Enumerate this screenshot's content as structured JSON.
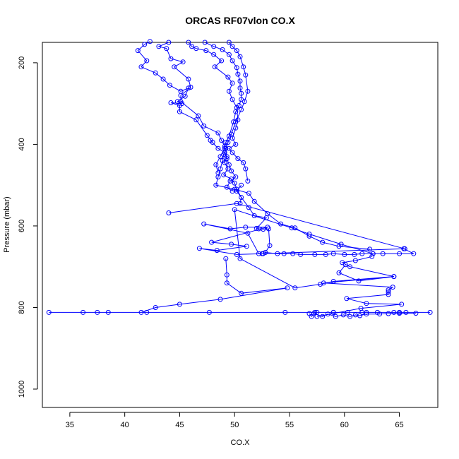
{
  "chart_data": {
    "type": "scatter",
    "title": "ORCAS RF07vlon CO.X",
    "xlabel": "CO.X",
    "ylabel": "Pressure (mbar)",
    "xlim": [
      32.5,
      68.5
    ],
    "ylim": [
      1045,
      150
    ],
    "y_inverted": true,
    "x_ticks": [
      35,
      40,
      45,
      50,
      55,
      60,
      65
    ],
    "y_ticks": [
      200,
      400,
      600,
      800,
      1000
    ],
    "grid": false,
    "legend": "none",
    "color": "#0000ff",
    "marker": "open-circle",
    "series": [
      {
        "points": [
          [
            42.3,
            148
          ],
          [
            41.8,
            155
          ],
          [
            41.2,
            170
          ],
          [
            42.0,
            195
          ],
          [
            41.5,
            210
          ],
          [
            42.8,
            225
          ],
          [
            43.5,
            240
          ],
          [
            44.1,
            255
          ],
          [
            45.1,
            270
          ],
          [
            45.8,
            262
          ],
          [
            45.5,
            282
          ],
          [
            44.8,
            295
          ],
          [
            45.2,
            300
          ],
          [
            44.2,
            298
          ],
          [
            45.0,
            305
          ],
          [
            45.0,
            320
          ],
          [
            46.5,
            340
          ],
          [
            47.5,
            378
          ],
          [
            48.0,
            395
          ],
          [
            47.8,
            390
          ],
          [
            48.5,
            410
          ],
          [
            49.1,
            420
          ],
          [
            49.3,
            435
          ],
          [
            49.5,
            450
          ],
          [
            49.7,
            465
          ],
          [
            50.1,
            480
          ],
          [
            49.6,
            490
          ],
          [
            49.3,
            505
          ],
          [
            49.8,
            515
          ]
        ]
      },
      {
        "points": [
          [
            44.0,
            150
          ],
          [
            43.1,
            160
          ],
          [
            43.8,
            165
          ],
          [
            44.2,
            190
          ],
          [
            45.3,
            198
          ],
          [
            44.5,
            210
          ],
          [
            45.8,
            240
          ],
          [
            46.0,
            260
          ],
          [
            45.1,
            280
          ],
          [
            45.1,
            295
          ],
          [
            46.7,
            330
          ],
          [
            47.2,
            355
          ],
          [
            48.5,
            372
          ],
          [
            48.8,
            390
          ],
          [
            49.1,
            405
          ],
          [
            49.3,
            430
          ],
          [
            49.1,
            445
          ],
          [
            49.4,
            460
          ],
          [
            49.0,
            475
          ],
          [
            49.7,
            485
          ],
          [
            50.0,
            495
          ],
          [
            50.2,
            510
          ],
          [
            50.6,
            530
          ],
          [
            50.5,
            545
          ]
        ]
      },
      {
        "points": [
          [
            45.8,
            150
          ],
          [
            46.1,
            160
          ],
          [
            46.5,
            165
          ],
          [
            47.4,
            170
          ],
          [
            48.1,
            180
          ],
          [
            48.8,
            195
          ],
          [
            48.2,
            210
          ],
          [
            49.4,
            235
          ],
          [
            49.8,
            250
          ],
          [
            49.5,
            270
          ],
          [
            49.8,
            290
          ],
          [
            50.2,
            310
          ],
          [
            50.3,
            340
          ],
          [
            50.1,
            360
          ],
          [
            49.8,
            385
          ],
          [
            50.1,
            400
          ],
          [
            49.5,
            410
          ],
          [
            49.8,
            420
          ],
          [
            50.3,
            435
          ],
          [
            50.8,
            445
          ],
          [
            51.0,
            460
          ],
          [
            51.2,
            490
          ]
        ]
      },
      {
        "points": [
          [
            47.3,
            150
          ],
          [
            48.1,
            160
          ],
          [
            48.9,
            168
          ],
          [
            49.5,
            180
          ],
          [
            49.8,
            195
          ],
          [
            50.2,
            212
          ],
          [
            50.3,
            228
          ],
          [
            50.5,
            245
          ],
          [
            50.5,
            262
          ],
          [
            50.6,
            275
          ],
          [
            50.6,
            290
          ],
          [
            50.4,
            305
          ],
          [
            50.1,
            320
          ],
          [
            49.9,
            345
          ],
          [
            49.5,
            380
          ],
          [
            49.2,
            395
          ],
          [
            49.1,
            410
          ],
          [
            48.7,
            430
          ],
          [
            48.3,
            450
          ],
          [
            48.5,
            470
          ]
        ]
      },
      {
        "points": [
          [
            49.5,
            150
          ],
          [
            49.8,
            160
          ],
          [
            50.2,
            170
          ],
          [
            50.5,
            185
          ],
          [
            50.8,
            210
          ],
          [
            51.0,
            230
          ],
          [
            51.2,
            270
          ],
          [
            50.9,
            295
          ],
          [
            50.6,
            315
          ],
          [
            50.1,
            345
          ],
          [
            49.7,
            375
          ],
          [
            49.4,
            395
          ],
          [
            49.2,
            410
          ],
          [
            49.0,
            425
          ],
          [
            48.9,
            440
          ],
          [
            48.7,
            460
          ],
          [
            48.5,
            480
          ],
          [
            48.3,
            500
          ],
          [
            50.0,
            510
          ],
          [
            51.3,
            520
          ],
          [
            51.8,
            540
          ],
          [
            53.0,
            570
          ],
          [
            54.2,
            595
          ],
          [
            55.5,
            605
          ],
          [
            56.8,
            625
          ],
          [
            58.0,
            640
          ],
          [
            59.5,
            650
          ],
          [
            62.3,
            657
          ]
        ]
      },
      {
        "points": [
          [
            50.6,
            500
          ],
          [
            50.2,
            515
          ],
          [
            51.3,
            555
          ],
          [
            51.8,
            575
          ],
          [
            52.9,
            580
          ],
          [
            52.0,
            606
          ],
          [
            52.2,
            607
          ],
          [
            52.6,
            608
          ],
          [
            53.1,
            607
          ],
          [
            53.2,
            648
          ],
          [
            52.8,
            665
          ],
          [
            53.9,
            668
          ],
          [
            54.5,
            668
          ],
          [
            55.3,
            668
          ],
          [
            56.0,
            670
          ],
          [
            57.3,
            670
          ],
          [
            58.3,
            670
          ],
          [
            59.0,
            668
          ],
          [
            60.0,
            670
          ],
          [
            60.9,
            670
          ],
          [
            61.6,
            668
          ],
          [
            62.6,
            668
          ],
          [
            63.5,
            668
          ],
          [
            65.0,
            668
          ],
          [
            66.3,
            668
          ],
          [
            65.4,
            656
          ]
        ]
      },
      {
        "points": [
          [
            44.0,
            568
          ],
          [
            50.2,
            545
          ],
          [
            65.5,
            656
          ],
          [
            52.5,
            668
          ],
          [
            52.2,
            668
          ],
          [
            51.2,
            618
          ],
          [
            47.2,
            595
          ],
          [
            49.6,
            607
          ],
          [
            51.0,
            603
          ],
          [
            53.0,
            603
          ],
          [
            47.9,
            640
          ],
          [
            49.7,
            645
          ],
          [
            51.1,
            650
          ],
          [
            48.4,
            660
          ],
          [
            46.8,
            655
          ],
          [
            50.2,
            670
          ],
          [
            52.6,
            668
          ]
        ]
      },
      {
        "points": [
          [
            49.2,
            680
          ],
          [
            49.3,
            720
          ],
          [
            49.3,
            740
          ],
          [
            50.6,
            765
          ],
          [
            54.8,
            752
          ],
          [
            48.7,
            780
          ],
          [
            45.0,
            792
          ],
          [
            42.8,
            800
          ],
          [
            41.5,
            812
          ],
          [
            36.2,
            812
          ],
          [
            33.1,
            812
          ],
          [
            37.5,
            812
          ],
          [
            38.5,
            812
          ],
          [
            42.0,
            812
          ],
          [
            47.7,
            812
          ],
          [
            54.6,
            812
          ],
          [
            57.5,
            812
          ],
          [
            59.0,
            812
          ],
          [
            60.3,
            812
          ],
          [
            61.6,
            812
          ],
          [
            63.0,
            812
          ],
          [
            64.5,
            812
          ],
          [
            65.6,
            812
          ],
          [
            67.8,
            812
          ],
          [
            65.0,
            812
          ],
          [
            62.0,
            812
          ],
          [
            59.0,
            812
          ],
          [
            57.3,
            812
          ]
        ]
      },
      {
        "points": [
          [
            56.8,
            815
          ],
          [
            57.0,
            822
          ],
          [
            57.2,
            815
          ],
          [
            58.0,
            822
          ],
          [
            58.5,
            816
          ],
          [
            59.2,
            822
          ],
          [
            59.9,
            818
          ],
          [
            60.5,
            822
          ],
          [
            61.0,
            818
          ],
          [
            61.4,
            820
          ],
          [
            62.0,
            816
          ],
          [
            63.2,
            816
          ],
          [
            64.0,
            815
          ],
          [
            65.0,
            814
          ],
          [
            66.5,
            814
          ]
        ]
      },
      {
        "points": [
          [
            60.1,
            695
          ],
          [
            59.5,
            715
          ],
          [
            61.3,
            735
          ],
          [
            64.5,
            724
          ],
          [
            58.1,
            740
          ],
          [
            64.4,
            750
          ],
          [
            64.0,
            757
          ],
          [
            64.0,
            762
          ],
          [
            64.0,
            768
          ],
          [
            60.2,
            778
          ],
          [
            62.0,
            790
          ],
          [
            65.2,
            792
          ],
          [
            61.5,
            802
          ],
          [
            57.5,
            822
          ]
        ]
      },
      {
        "points": [
          [
            62.5,
            675
          ],
          [
            61.0,
            685
          ],
          [
            59.8,
            690
          ],
          [
            60.5,
            700
          ],
          [
            64.5,
            724
          ],
          [
            59.0,
            736
          ],
          [
            57.8,
            743
          ],
          [
            55.5,
            752
          ],
          [
            50.5,
            680
          ],
          [
            50.0,
            560
          ],
          [
            55.2,
            605
          ],
          [
            56.8,
            620
          ],
          [
            59.7,
            645
          ],
          [
            62.6,
            668
          ]
        ]
      }
    ]
  }
}
